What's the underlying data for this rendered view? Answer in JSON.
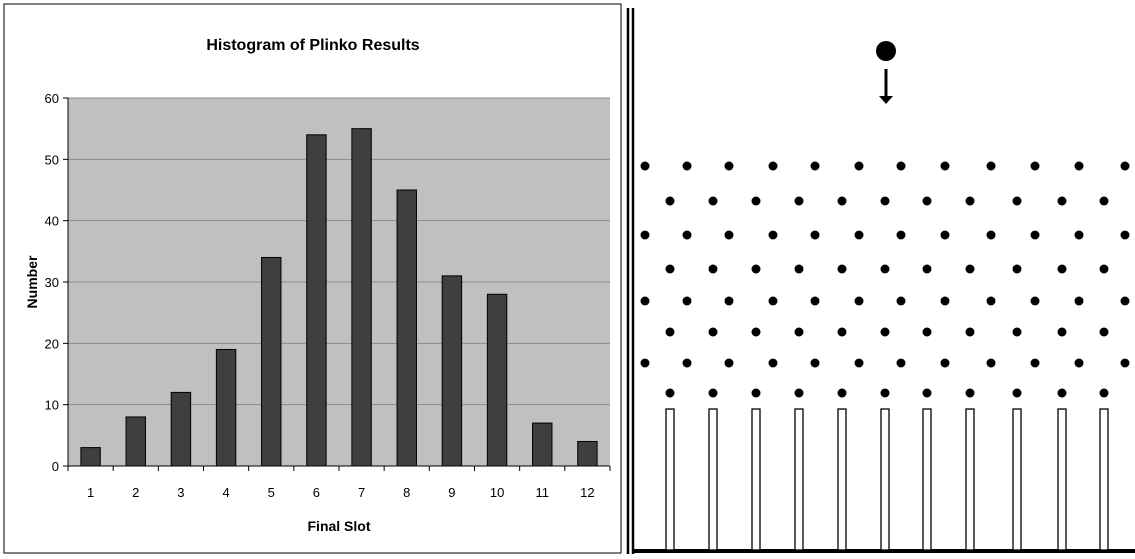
{
  "chart_data": {
    "type": "bar",
    "title": "Histogram of Plinko Results",
    "xlabel": "Final Slot",
    "ylabel": "Number",
    "categories": [
      "1",
      "2",
      "3",
      "4",
      "5",
      "6",
      "7",
      "8",
      "9",
      "10",
      "11",
      "12"
    ],
    "values": [
      3,
      8,
      12,
      19,
      34,
      54,
      55,
      45,
      31,
      28,
      7,
      4
    ],
    "ylim": [
      0,
      60
    ],
    "yticks": [
      0,
      10,
      20,
      30,
      40,
      50,
      60
    ],
    "grid": true,
    "colors": {
      "bar": "#3f3f3f",
      "plot_background": "#c0c0c0",
      "gridline": "#8c8c8c"
    }
  },
  "plinko_board": {
    "peg_rows": 8,
    "slot_dividers": 11,
    "colors": {
      "peg": "#000000",
      "ball": "#000000",
      "divider_fill": "#ffffff"
    },
    "icons": {
      "ball": "ball-icon",
      "drop_arrow": "arrow-down-icon"
    }
  }
}
